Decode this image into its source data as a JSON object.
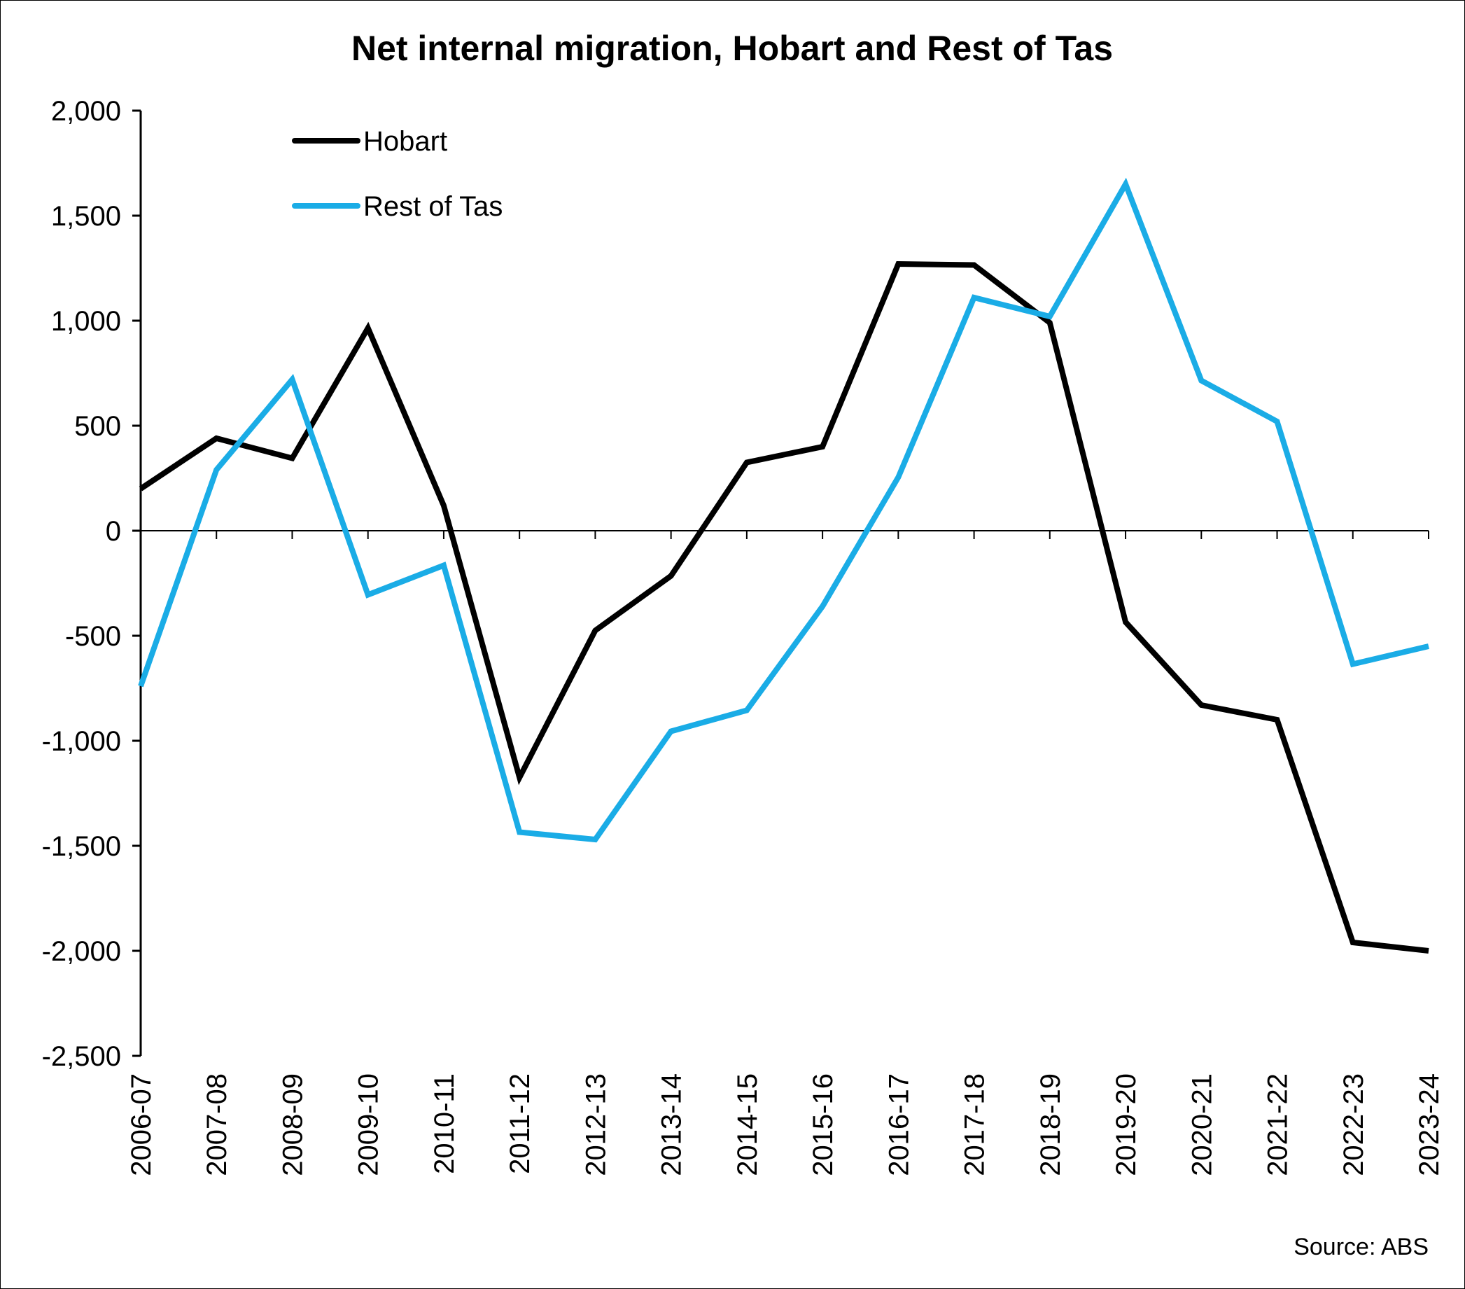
{
  "chart_data": {
    "type": "line",
    "title": "Net internal migration, Hobart and Rest of Tas",
    "xlabel": "",
    "ylabel": "",
    "categories": [
      "2006-07",
      "2007-08",
      "2008-09",
      "2009-10",
      "2010-11",
      "2011-12",
      "2012-13",
      "2013-14",
      "2014-15",
      "2015-16",
      "2016-17",
      "2017-18",
      "2018-19",
      "2019-20",
      "2020-21",
      "2021-22",
      "2022-23",
      "2023-24"
    ],
    "series": [
      {
        "name": "Hobart",
        "color": "#000000",
        "values": [
          200,
          440,
          345,
          965,
          120,
          -1175,
          -475,
          -215,
          325,
          400,
          1270,
          1265,
          990,
          -435,
          -830,
          -900,
          -1960,
          -2000
        ]
      },
      {
        "name": "Rest of Tas",
        "color": "#1aace6",
        "values": [
          -740,
          290,
          720,
          -305,
          -165,
          -1435,
          -1470,
          -955,
          -855,
          -360,
          255,
          1110,
          1020,
          1650,
          715,
          520,
          -635,
          -550
        ]
      }
    ],
    "ylim": [
      -2500,
      2000
    ],
    "yticks": [
      2000,
      1500,
      1000,
      500,
      0,
      -500,
      -1000,
      -1500,
      -2000,
      -2500
    ],
    "ytick_labels": [
      "2,000",
      "1,500",
      "1,000",
      "500",
      "0",
      "-500",
      "-1,000",
      "-1,500",
      "-2,000",
      "-2,500"
    ],
    "legend_position": "top-left",
    "grid": false,
    "source": "Source: ABS"
  }
}
